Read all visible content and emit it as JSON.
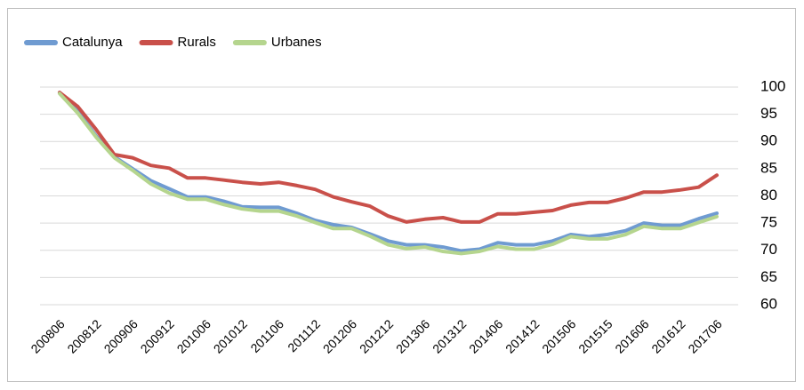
{
  "chart_data": {
    "type": "line",
    "categories": [
      "200806",
      null,
      "200812",
      null,
      "200906",
      null,
      "200912",
      null,
      "201006",
      null,
      "201012",
      null,
      "201106",
      null,
      "201112",
      null,
      "201206",
      null,
      "201212",
      null,
      "201306",
      null,
      "201312",
      null,
      "201406",
      null,
      "201412",
      null,
      "201506",
      null,
      "201515",
      null,
      "201606",
      null,
      "201612",
      null,
      "201706"
    ],
    "series": [
      {
        "name": "Catalunya",
        "color": "#6f9bd1",
        "values": [
          99,
          95.5,
          91,
          87.2,
          85,
          82.8,
          81.3,
          79.8,
          79.8,
          79,
          78,
          77.9,
          77.9,
          76.8,
          75.5,
          74.7,
          74.2,
          73,
          71.7,
          71,
          71,
          70.6,
          69.9,
          70.2,
          71.4,
          71,
          71,
          71.7,
          72.9,
          72.5,
          72.9,
          73.6,
          75,
          74.6,
          74.6,
          75.8,
          76.8
        ]
      },
      {
        "name": "Rurals",
        "color": "#c9504a",
        "values": [
          99,
          96.4,
          92.2,
          87.6,
          87,
          85.6,
          85.1,
          83.3,
          83.3,
          82.9,
          82.5,
          82.2,
          82.5,
          81.9,
          81.2,
          79.8,
          78.9,
          78.1,
          76.3,
          75.2,
          75.7,
          76,
          75.2,
          75.2,
          76.7,
          76.7,
          77,
          77.3,
          78.3,
          78.8,
          78.8,
          79.6,
          80.7,
          80.7,
          81.1,
          81.6,
          83.8
        ]
      },
      {
        "name": "Urbanes",
        "color": "#b5d58e",
        "values": [
          98.8,
          95.2,
          90.8,
          87,
          84.7,
          82.2,
          80.5,
          79.4,
          79.4,
          78.4,
          77.6,
          77.2,
          77.2,
          76.3,
          75.1,
          74,
          74,
          72.6,
          71,
          70.3,
          70.6,
          69.8,
          69.4,
          69.8,
          70.7,
          70.2,
          70.2,
          71.1,
          72.5,
          72.1,
          72.1,
          72.9,
          74.4,
          74,
          74,
          75.1,
          76.2
        ]
      }
    ],
    "ylim": [
      60,
      100
    ],
    "yticks": [
      60,
      65,
      70,
      75,
      80,
      85,
      90,
      95,
      100
    ],
    "grid": true,
    "legend": "top-left"
  }
}
